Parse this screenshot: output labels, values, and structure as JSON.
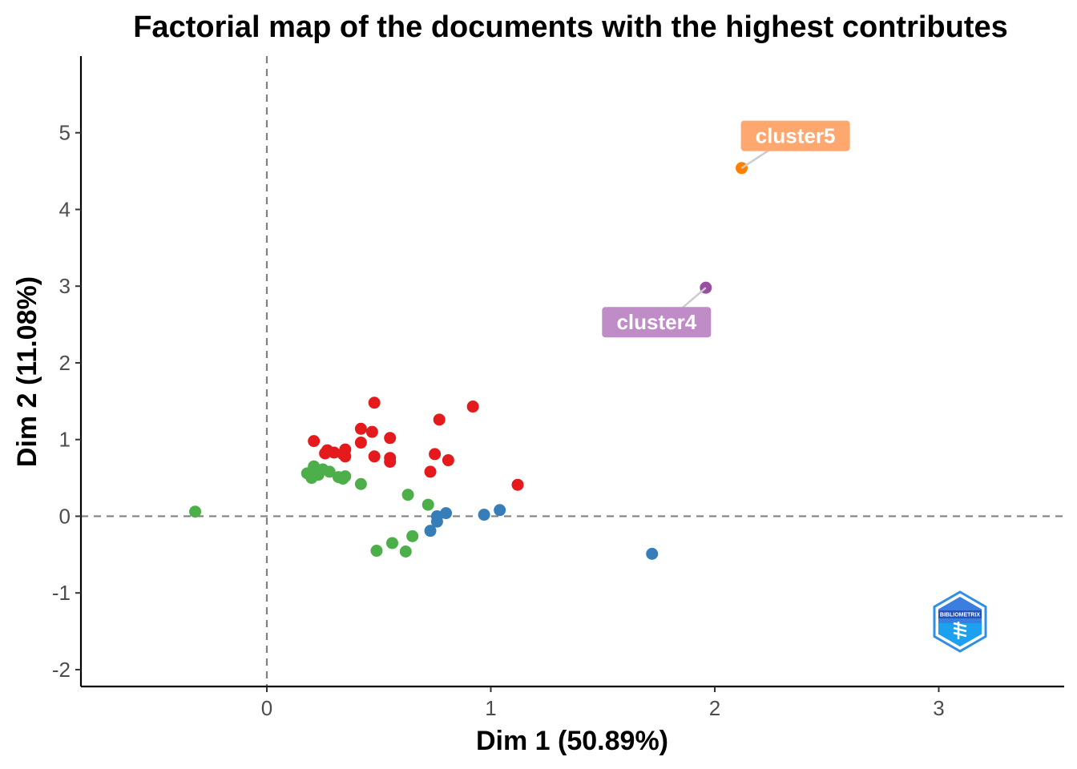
{
  "chart_data": {
    "type": "scatter",
    "title": "Factorial map of the documents with the highest contributes",
    "xlabel": "Dim 1 (50.89%)",
    "ylabel": "Dim 2 (11.08%)",
    "xlim": [
      -0.83,
      3.56
    ],
    "ylim": [
      -2.22,
      6.0
    ],
    "xticks": [
      0,
      1,
      2,
      3
    ],
    "yticks": [
      -2,
      -1,
      0,
      1,
      2,
      3,
      4,
      5
    ],
    "reference_lines": {
      "x": 0,
      "y": 0,
      "style": "dashed"
    },
    "grid": false,
    "series": [
      {
        "color": "#e41a1c",
        "points": [
          [
            0.48,
            1.48
          ],
          [
            0.92,
            1.43
          ],
          [
            0.77,
            1.26
          ],
          [
            0.42,
            1.14
          ],
          [
            0.47,
            1.1
          ],
          [
            0.55,
            1.02
          ],
          [
            0.42,
            0.96
          ],
          [
            0.21,
            0.98
          ],
          [
            0.27,
            0.86
          ],
          [
            0.3,
            0.83
          ],
          [
            0.26,
            0.82
          ],
          [
            0.35,
            0.87
          ],
          [
            0.34,
            0.81
          ],
          [
            0.35,
            0.78
          ],
          [
            0.48,
            0.78
          ],
          [
            0.55,
            0.76
          ],
          [
            0.55,
            0.71
          ],
          [
            0.75,
            0.81
          ],
          [
            0.81,
            0.73
          ],
          [
            0.73,
            0.58
          ],
          [
            1.12,
            0.41
          ]
        ]
      },
      {
        "color": "#4daf4a",
        "points": [
          [
            -0.32,
            0.06
          ],
          [
            0.18,
            0.56
          ],
          [
            0.2,
            0.5
          ],
          [
            0.21,
            0.65
          ],
          [
            0.23,
            0.54
          ],
          [
            0.25,
            0.61
          ],
          [
            0.28,
            0.58
          ],
          [
            0.32,
            0.51
          ],
          [
            0.34,
            0.49
          ],
          [
            0.35,
            0.52
          ],
          [
            0.42,
            0.42
          ],
          [
            0.63,
            0.28
          ],
          [
            0.72,
            0.15
          ],
          [
            0.49,
            -0.45
          ],
          [
            0.56,
            -0.35
          ],
          [
            0.62,
            -0.46
          ],
          [
            0.65,
            -0.26
          ],
          [
            0.22,
            0.55
          ]
        ]
      },
      {
        "color": "#377eb8",
        "points": [
          [
            0.76,
            0.0
          ],
          [
            0.8,
            0.04
          ],
          [
            0.76,
            -0.07
          ],
          [
            0.73,
            -0.19
          ],
          [
            0.97,
            0.02
          ],
          [
            1.04,
            0.08
          ],
          [
            1.72,
            -0.49
          ]
        ]
      },
      {
        "color": "#984ea3",
        "label": "cluster4",
        "label_color": "#c08cc8",
        "label_pos": [
          1.74,
          2.53
        ],
        "points": [
          [
            1.96,
            2.98
          ]
        ]
      },
      {
        "color": "#ff7f00",
        "label": "cluster5",
        "label_color": "#fea870",
        "label_pos": [
          2.36,
          4.96
        ],
        "points": [
          [
            2.12,
            4.54
          ]
        ]
      }
    ]
  },
  "logo": {
    "name": "bibliometrix-logo-icon",
    "text": "BIBLIOMETRIX"
  },
  "colors": {
    "axis": "#000000",
    "ref_line": "#808080",
    "tick_text": "#4d4d4d"
  }
}
